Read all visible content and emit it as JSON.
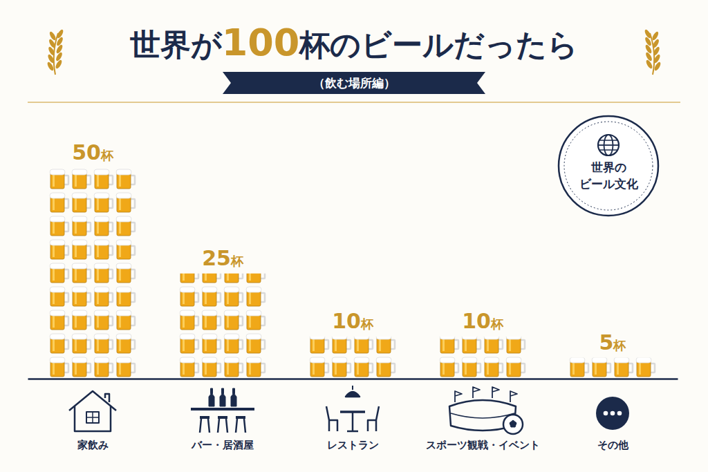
{
  "chart_data": {
    "type": "bar",
    "title": "世界が100杯のビールだったら",
    "subtitle": "（飲む場所編）",
    "categories": [
      "家飲み",
      "バー・居酒屋",
      "レストラン",
      "スポーツ観戦・イベント",
      "その他"
    ],
    "values": [
      50,
      25,
      10,
      10,
      5
    ],
    "value_labels": [
      "50杯",
      "25杯",
      "10杯",
      "10杯",
      "5杯"
    ],
    "annotations": [
      "世界の",
      "ビール文化"
    ],
    "color": "#f0a818",
    "ylim": [
      0,
      55
    ],
    "data_labels": true,
    "tick_labels": "x",
    "grid": false
  }
}
